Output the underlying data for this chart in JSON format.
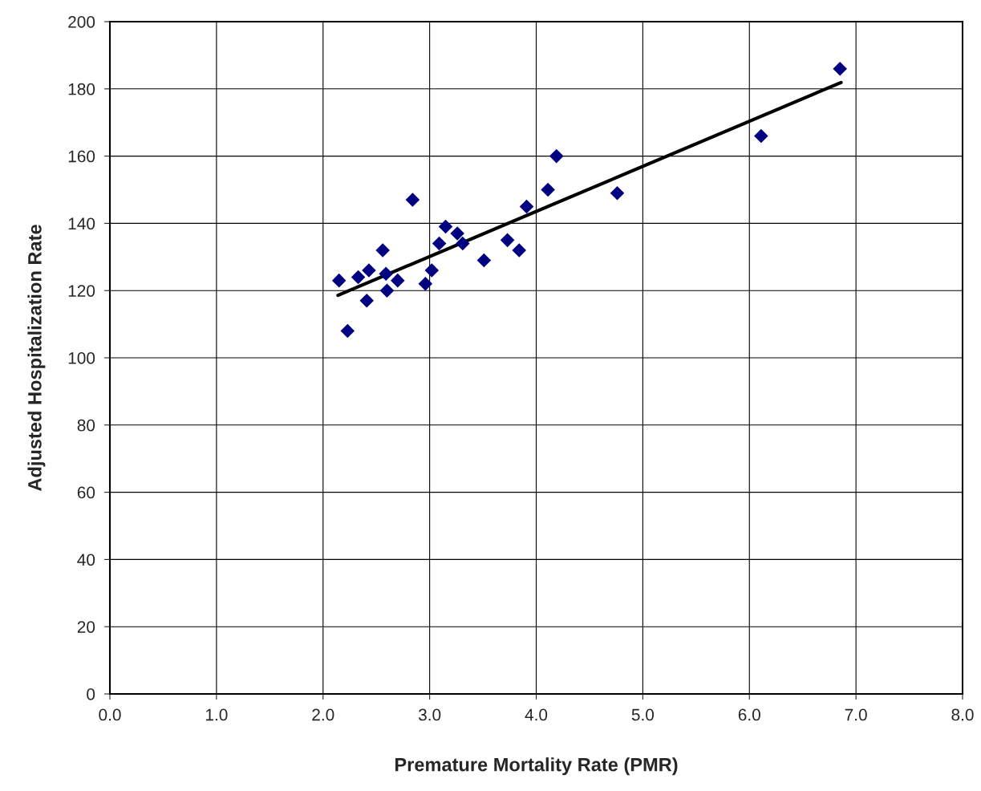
{
  "chart_data": {
    "type": "scatter",
    "xlabel": "Premature Mortality Rate (PMR)",
    "ylabel": "Adjusted Hospitalization Rate",
    "series": [
      {
        "color": "#000080",
        "marker": "diamond",
        "x": [
          2.15,
          2.23,
          2.33,
          2.41,
          2.43,
          2.56,
          2.59,
          2.6,
          2.7,
          2.84,
          2.96,
          3.02,
          3.09,
          3.15,
          3.26,
          3.31,
          3.51,
          3.73,
          3.84,
          3.91,
          4.11,
          4.19,
          4.76,
          6.11,
          6.85
        ],
        "values": [
          123,
          108,
          124,
          117,
          126,
          132,
          125,
          120,
          123,
          147,
          122,
          126,
          134,
          139,
          137,
          134,
          129,
          135,
          132,
          145,
          150,
          160,
          149,
          166,
          186
        ]
      },
      {
        "type": "line",
        "color": "#000000",
        "marker": "none",
        "line_style": "solid",
        "x": [
          2.14,
          6.86
        ],
        "values": [
          118.6,
          181.9
        ]
      }
    ],
    "xlim": [
      0,
      8
    ],
    "xticks": [
      {
        "value": 0,
        "label": "0.0"
      },
      {
        "value": 1,
        "label": "1.0"
      },
      {
        "value": 2,
        "label": "2.0"
      },
      {
        "value": 3,
        "label": "3.0"
      },
      {
        "value": 4,
        "label": "4.0"
      },
      {
        "value": 5,
        "label": "5.0"
      },
      {
        "value": 6,
        "label": "6.0"
      },
      {
        "value": 7,
        "label": "7.0"
      },
      {
        "value": 8,
        "label": "8.0"
      }
    ],
    "ylim": [
      0,
      200
    ],
    "yticks": [
      0,
      20,
      40,
      60,
      80,
      100,
      120,
      140,
      160,
      180,
      200
    ],
    "grid": true
  }
}
